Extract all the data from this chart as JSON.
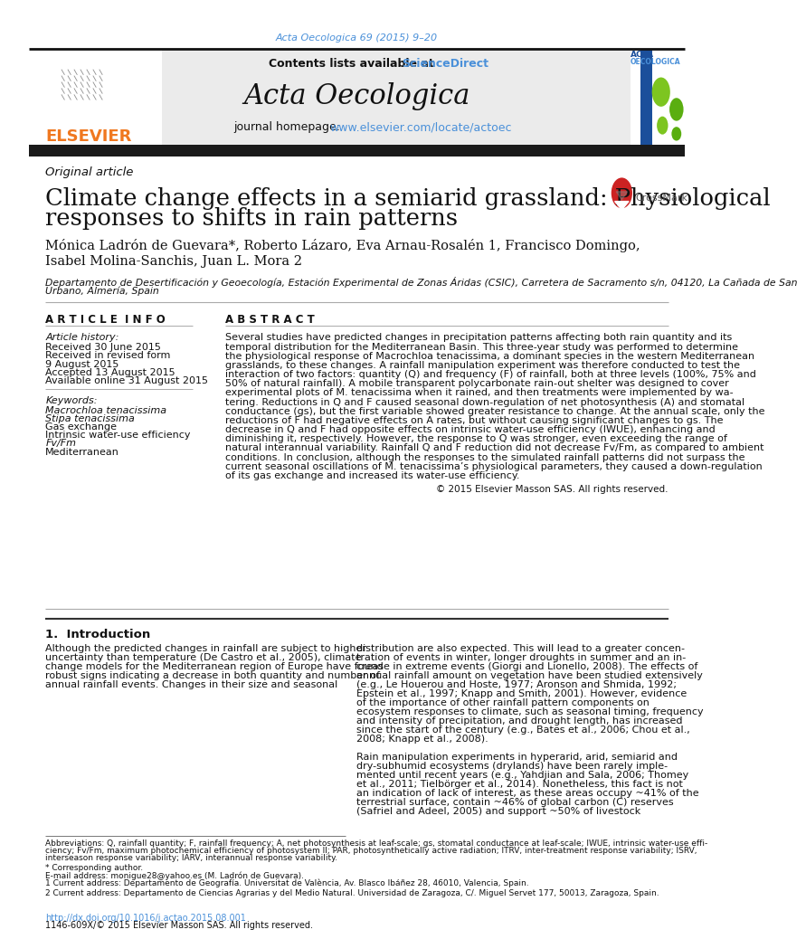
{
  "page_title": "Acta Oecologica 69 (2015) 9–20",
  "journal_name": "Acta Oecologica",
  "contents_text": "Contents lists available at ",
  "sciencedirect_link": "ScienceDirect",
  "homepage_label": "journal homepage: ",
  "homepage_link": "www.elsevier.com/locate/actoec",
  "article_type": "Original article",
  "article_title_line1": "Climate change effects in a semiarid grassland: Physiological",
  "article_title_line2": "responses to shifts in rain patterns",
  "authors_line1": "Mónica Ladrón de Guevara*, Roberto Lázaro, Eva Arnau-Rosalén 1, Francisco Domingo,",
  "authors_line2": "Isabel Molina-Sanchis, Juan L. Mora 2",
  "affiliation_line1": "Departamento de Desertificación y Geoecología, Estación Experimental de Zonas Áridas (CSIC), Carretera de Sacramento s/n, 04120, La Cañada de San",
  "affiliation_line2": "Urbano, Almería, Spain",
  "article_info_header": "A R T I C L E  I N F O",
  "abstract_header": "A B S T R A C T",
  "article_history_label": "Article history:",
  "received": "Received 30 June 2015",
  "revised": "Received in revised form",
  "revised2": "9 August 2015",
  "accepted": "Accepted 13 August 2015",
  "available": "Available online 31 August 2015",
  "keywords_label": "Keywords:",
  "keyword1": "Macrochloa tenacissima",
  "keyword2": "Stipa tenacissima",
  "keyword3": "Gas exchange",
  "keyword4": "Intrinsic water-use efficiency",
  "keyword5": "Fv/Fm",
  "keyword6": "Mediterranean",
  "abstract_lines": [
    "Several studies have predicted changes in precipitation patterns affecting both rain quantity and its",
    "temporal distribution for the Mediterranean Basin. This three-year study was performed to determine",
    "the physiological response of Macrochloa tenacissima, a dominant species in the western Mediterranean",
    "grasslands, to these changes. A rainfall manipulation experiment was therefore conducted to test the",
    "interaction of two factors: quantity (Q) and frequency (F) of rainfall, both at three levels (100%, 75% and",
    "50% of natural rainfall). A mobile transparent polycarbonate rain-out shelter was designed to cover",
    "experimental plots of M. tenacissima when it rained, and then treatments were implemented by wa-",
    "tering. Reductions in Q and F caused seasonal down-regulation of net photosynthesis (A) and stomatal",
    "conductance (gs), but the first variable showed greater resistance to change. At the annual scale, only the",
    "reductions of F had negative effects on A rates, but without causing significant changes to gs. The",
    "decrease in Q and F had opposite effects on intrinsic water-use efficiency (IWUE), enhancing and",
    "diminishing it, respectively. However, the response to Q was stronger, even exceeding the range of",
    "natural interannual variability. Rainfall Q and F reduction did not decrease Fv/Fm, as compared to ambient",
    "conditions. In conclusion, although the responses to the simulated rainfall patterns did not surpass the",
    "current seasonal oscillations of M. tenacissima’s physiological parameters, they caused a down-regulation",
    "of its gas exchange and increased its water-use efficiency."
  ],
  "copyright": "© 2015 Elsevier Masson SAS. All rights reserved.",
  "intro_header": "1.  Introduction",
  "intro_col1_lines": [
    "Although the predicted changes in rainfall are subject to higher",
    "uncertainty than temperature (De Castro et al., 2005), climate",
    "change models for the Mediterranean region of Europe have found",
    "robust signs indicating a decrease in both quantity and number of",
    "annual rainfall events. Changes in their size and seasonal"
  ],
  "intro_col2_lines": [
    "distribution are also expected. This will lead to a greater concen-",
    "tration of events in winter, longer droughts in summer and an in-",
    "crease in extreme events (Giorgi and Lionello, 2008). The effects of",
    "annual rainfall amount on vegetation have been studied extensively",
    "(e.g., Le Houerou and Hoste, 1977; Aronson and Shmida, 1992;",
    "Epstein et al., 1997; Knapp and Smith, 2001). However, evidence",
    "of the importance of other rainfall pattern components on",
    "ecosystem responses to climate, such as seasonal timing, frequency",
    "and intensity of precipitation, and drought length, has increased",
    "since the start of the century (e.g., Bates et al., 2006; Chou et al.,",
    "2008; Knapp et al., 2008).",
    "",
    "Rain manipulation experiments in hyperarid, arid, semiarid and",
    "dry-subhumid ecosystems (drylands) have been rarely imple-",
    "mented until recent years (e.g., Yahdjian and Sala, 2006; Thomey",
    "et al., 2011; Tielbörger et al., 2014). Nonetheless, this fact is not",
    "an indication of lack of interest, as these areas occupy ~41% of the",
    "terrestrial surface, contain ~46% of global carbon (C) reserves",
    "(Safriel and Adeel, 2005) and support ~50% of livestock"
  ],
  "footnote_abbrev_lines": [
    "Abbreviations: Q, rainfall quantity; F, rainfall frequency; A, net photosynthesis at leaf-scale; gs, stomatal conductance at leaf-scale; IWUE, intrinsic water-use effi-",
    "ciency; Fv/Fm, maximum photochemical efficiency of photosystem II; PAR, photosynthetically active radiation; ITRV, inter-treatment response variability; ISRV,",
    "interseason response variability; IARV, interannual response variability."
  ],
  "footnote_star": "* Corresponding author.",
  "footnote_email": "E-mail address: monigue28@yahoo.es (M. Ladrón de Guevara).",
  "footnote_1a": "1 Current address: Departamento de Geografía. Universitat de València, Av. Blasco Ibáñez 28, 46010, Valencia, Spain.",
  "footnote_2a": "2 Current address: Departamento de Ciencias Agrarias y del Medio Natural. Universidad de Zaragoza, C/. Miguel Servet 177, 50013, Zaragoza, Spain.",
  "doi_text": "http://dx.doi.org/10.1016/j.actao.2015.08.001",
  "issn_text": "1146-609X/© 2015 Elsevier Masson SAS. All rights reserved.",
  "color_link": "#4A90D9",
  "color_elsevier_orange": "#F07820",
  "color_dark_bar": "#1a1a1a",
  "color_header_bg": "#EBEBEB",
  "color_sep": "#AAAAAA"
}
